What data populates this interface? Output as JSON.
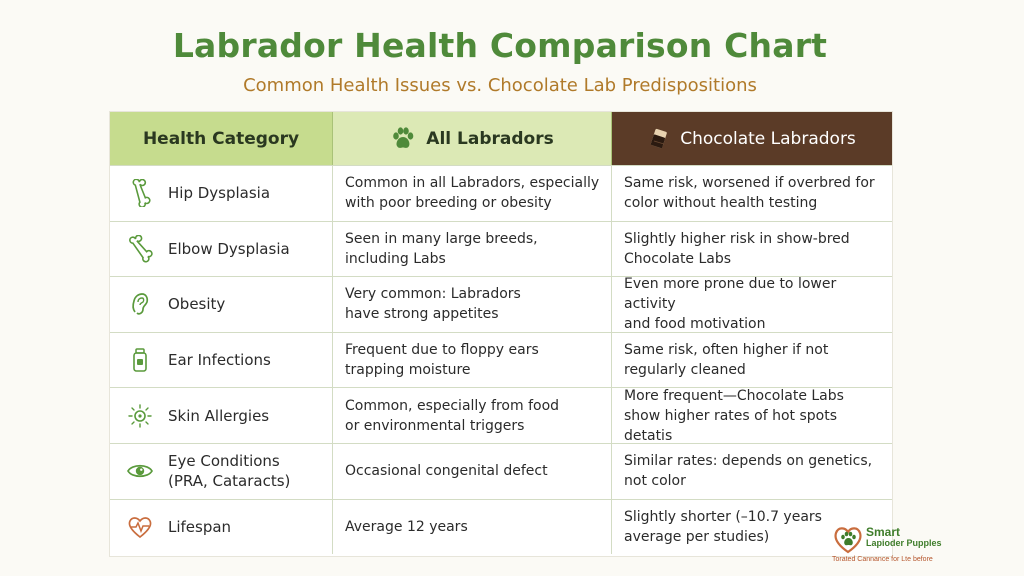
{
  "title": "Labrador Health Comparison Chart",
  "subtitle": "Common Health Issues vs. Chocolate Lab Predispositions",
  "header": {
    "category": "Health Category",
    "all": "All Labradors",
    "chocolate": "Chocolate Labradors"
  },
  "colors": {
    "title": "#4f8a3a",
    "subtitle": "#b07a2a",
    "header_category_bg": "#c6dc8e",
    "header_all_bg": "#dce9b5",
    "header_chocolate_bg": "#5b3b27",
    "icon_green": "#5a9a3c",
    "lifespan_icon": "#c96d3e"
  },
  "rows": [
    {
      "category": "Hip Dysplasia",
      "icon": "bone-icon",
      "all": [
        "Common in all Labradors, especially",
        "with poor breeding or obesity"
      ],
      "chocolate": [
        "Same risk, worsened if overbred for",
        "color without health testing"
      ]
    },
    {
      "category": "Elbow Dysplasia",
      "icon": "bone-icon",
      "all": [
        "Seen in many large breeds,",
        "including Labs"
      ],
      "chocolate": [
        "Slightly higher risk in show-bred",
        "Chocolate Labs"
      ]
    },
    {
      "category": "Obesity",
      "icon": "ear-icon",
      "all": [
        "Very common: Labradors",
        "have strong appetites"
      ],
      "chocolate": [
        "Even more prone due to lower activity",
        "and food motivation"
      ]
    },
    {
      "category": "Ear Infections",
      "icon": "medicine-bottle-icon",
      "all": [
        "Frequent due to floppy ears",
        "trapping moisture"
      ],
      "chocolate": [
        "Same risk, often higher if not",
        "regularly cleaned"
      ]
    },
    {
      "category": "Skin Allergies",
      "icon": "skin-cell-icon",
      "all": [
        "Common, especially from food",
        "or environmental triggers"
      ],
      "chocolate": [
        "More frequent—Chocolate Labs",
        "show higher rates of hot spots detatis"
      ]
    },
    {
      "category": "Eye Conditions\n(PRA, Cataracts)",
      "category_lines": [
        "Eye Conditions",
        "(PRA, Cataracts)"
      ],
      "icon": "eye-icon",
      "all": [
        "Occasional congenital defect"
      ],
      "chocolate": [
        "Similar rates: depends on genetics,",
        "not color"
      ]
    },
    {
      "category": "Lifespan",
      "icon": "heart-pulse-icon",
      "all": [
        "Average 12 years"
      ],
      "chocolate": [
        "Slightly shorter (–10.7 years",
        "average per studies)"
      ]
    }
  ],
  "logo": {
    "name_line1": "Smart",
    "name_line2": "Lapioder Pupples",
    "tagline": "Torated Cannance for Lte before"
  }
}
